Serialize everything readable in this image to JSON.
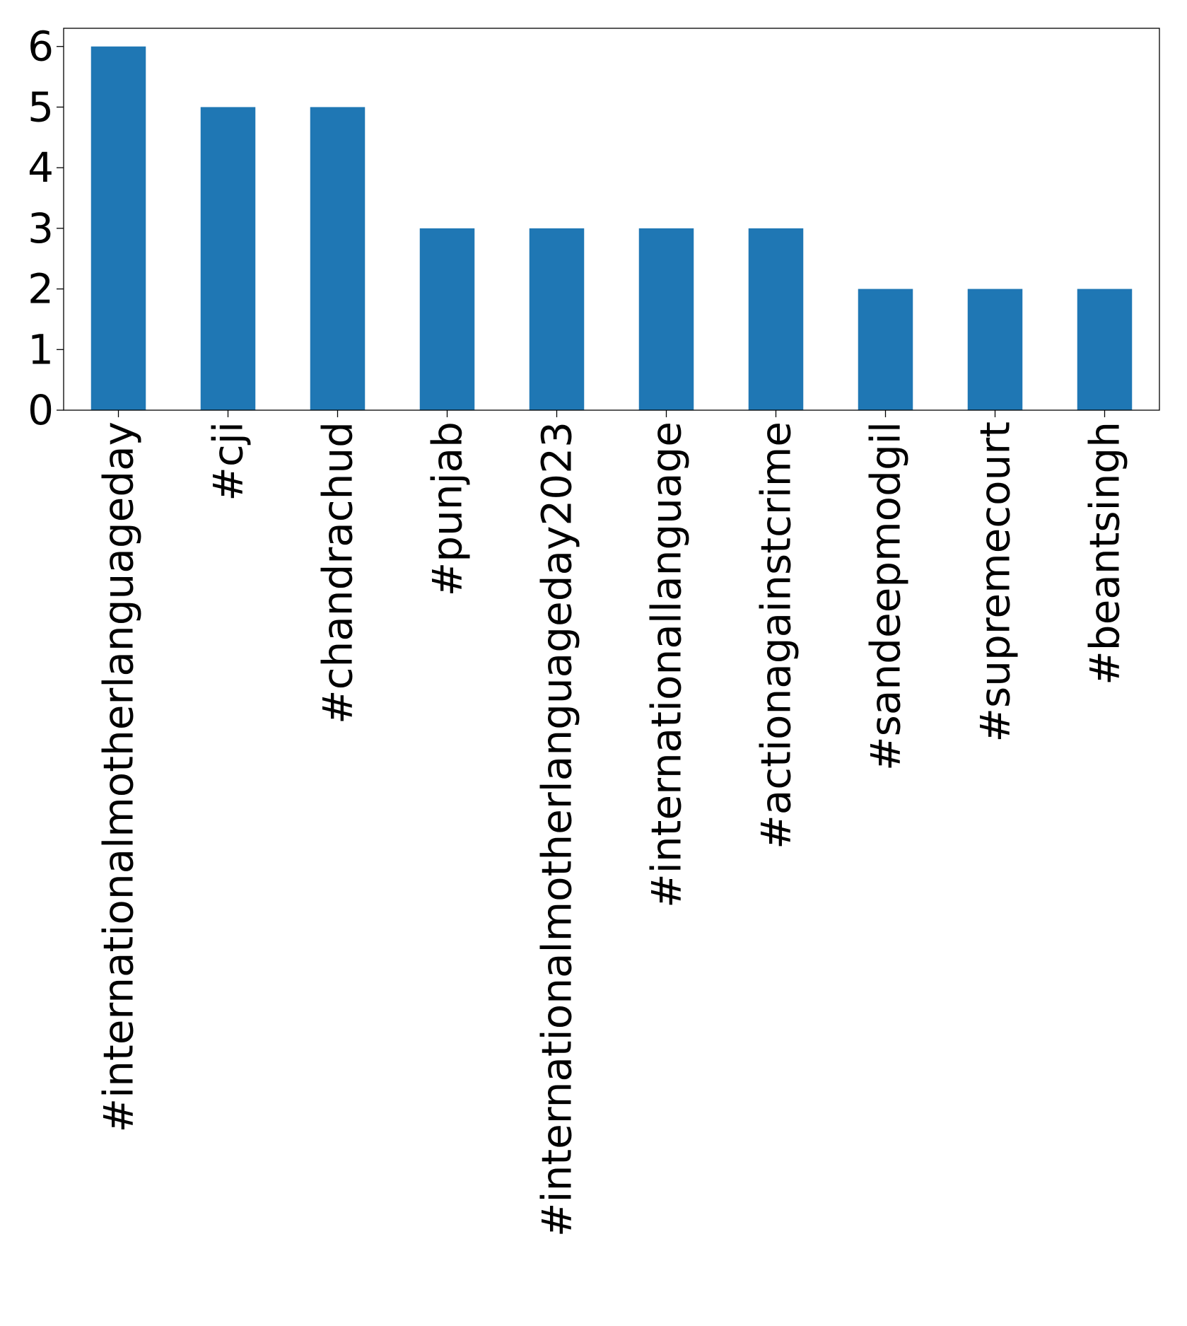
{
  "chart_data": {
    "type": "bar",
    "title": "",
    "xlabel": "",
    "ylabel": "",
    "categories": [
      "#internationalmotherlanguageday",
      "#cji",
      "#chandrachud",
      "#punjab",
      "#internationalmotherlanguageday2023",
      "#internationallanguage",
      "#actionagainstcrime",
      "#sandeepmodgil",
      "#supremecourt",
      "#beantsingh"
    ],
    "values": [
      6,
      5,
      5,
      3,
      3,
      3,
      3,
      2,
      2,
      2
    ],
    "ylim": [
      0,
      6.3
    ],
    "yticks": [
      "0",
      "1",
      "2",
      "3",
      "4",
      "5",
      "6"
    ],
    "bar_color": "#1f77b4",
    "grid": false,
    "legend": "none"
  }
}
